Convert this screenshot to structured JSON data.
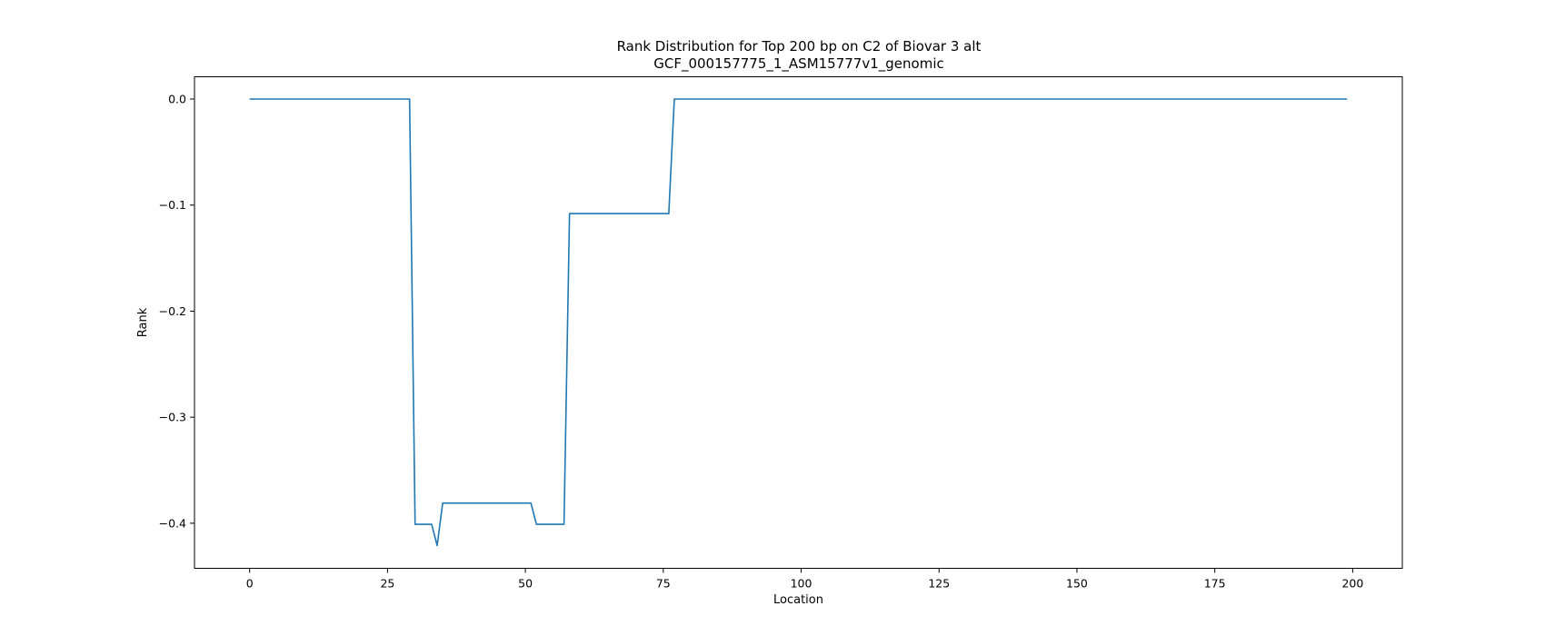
{
  "chart_data": {
    "type": "line",
    "title": "Rank Distribution for Top 200 bp on C2 of Biovar 3 alt",
    "subtitle": "GCF_000157775_1_ASM15777v1_genomic",
    "xlabel": "Location",
    "ylabel": "Rank",
    "xlim": [
      -10,
      209
    ],
    "ylim": [
      -0.4425,
      0.021
    ],
    "xticks": [
      {
        "value": 0,
        "label": "0"
      },
      {
        "value": 25,
        "label": "25"
      },
      {
        "value": 50,
        "label": "50"
      },
      {
        "value": 75,
        "label": "75"
      },
      {
        "value": 100,
        "label": "100"
      },
      {
        "value": 125,
        "label": "125"
      },
      {
        "value": 150,
        "label": "150"
      },
      {
        "value": 175,
        "label": "175"
      },
      {
        "value": 200,
        "label": "200"
      }
    ],
    "yticks": [
      {
        "value": 0.0,
        "label": "0.0"
      },
      {
        "value": -0.1,
        "label": "−0.1"
      },
      {
        "value": -0.2,
        "label": "−0.2"
      },
      {
        "value": -0.3,
        "label": "−0.3"
      },
      {
        "value": -0.4,
        "label": "−0.4"
      }
    ],
    "grid": false,
    "color": "#1f77b4",
    "series": [
      {
        "points": [
          [
            0,
            0.0
          ],
          [
            29,
            0.0
          ],
          [
            30,
            -0.401
          ],
          [
            33,
            -0.401
          ],
          [
            34,
            -0.421
          ],
          [
            35,
            -0.381
          ],
          [
            51,
            -0.381
          ],
          [
            52,
            -0.401
          ],
          [
            57,
            -0.401
          ],
          [
            58,
            -0.108
          ],
          [
            76,
            -0.108
          ],
          [
            77,
            0.0
          ],
          [
            199,
            0.0
          ]
        ]
      }
    ]
  }
}
